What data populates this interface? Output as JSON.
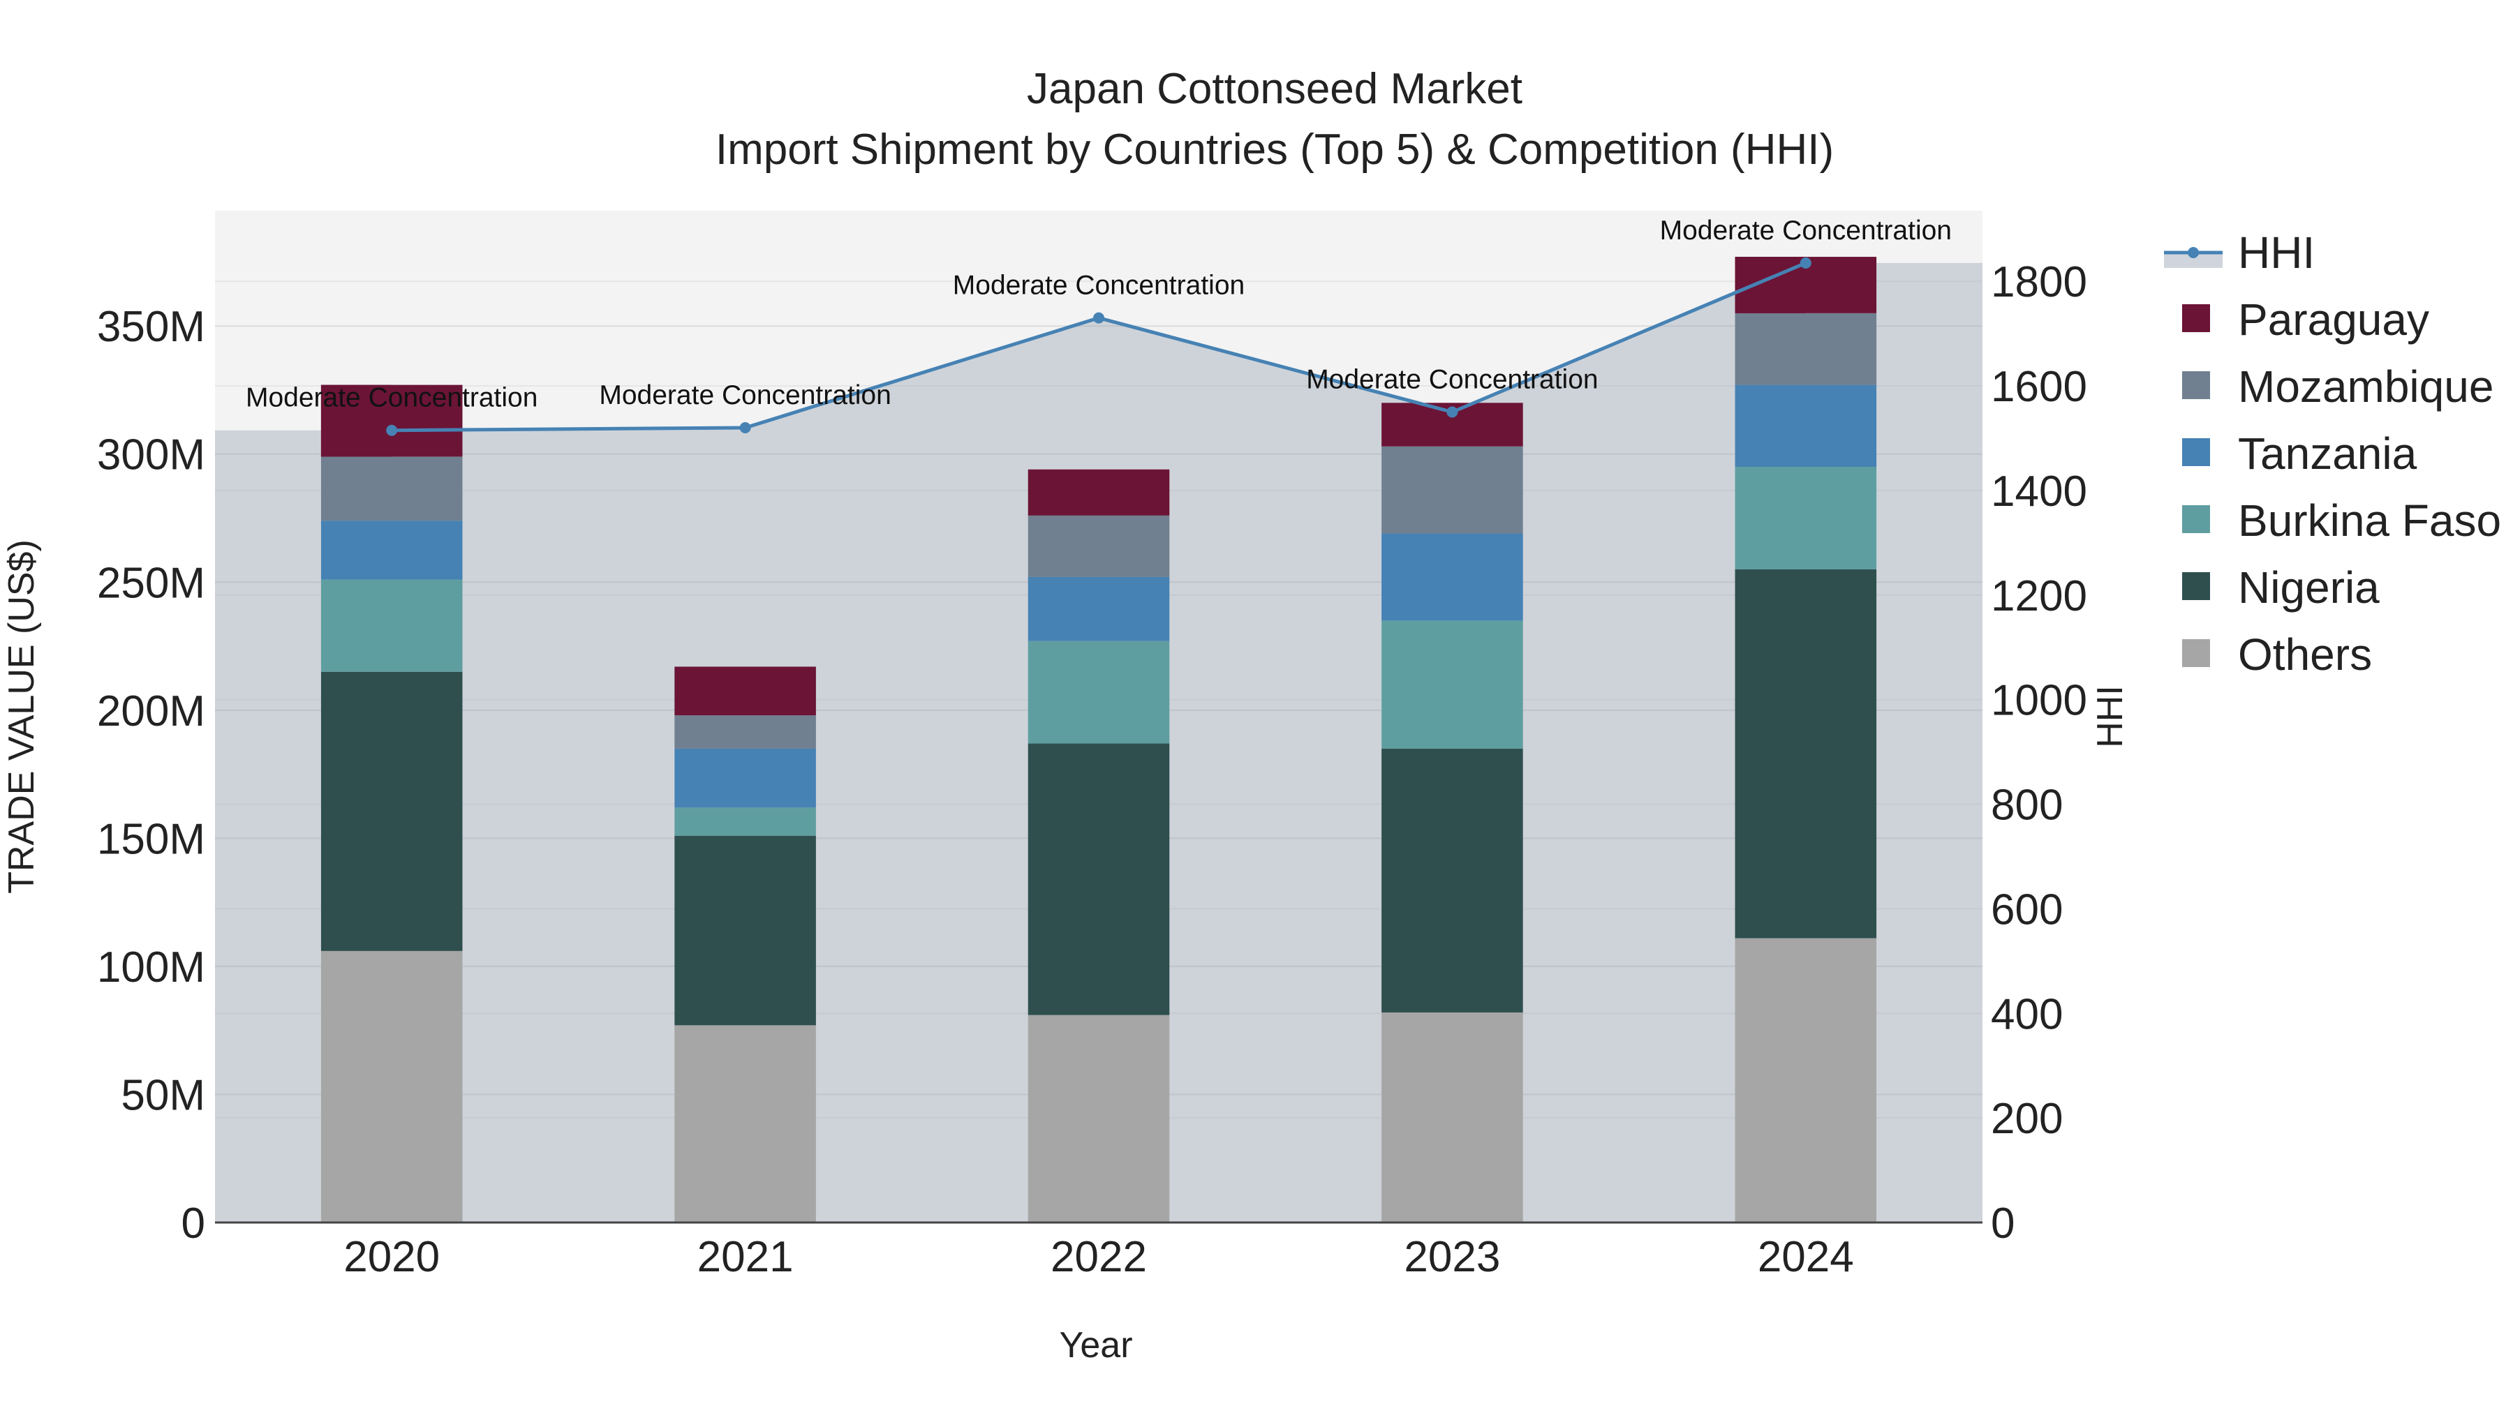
{
  "chart_data": {
    "type": "bar",
    "title_line1": "Japan Cottonseed Market",
    "title_line2": "Import Shipment by Countries (Top 5) & Competition (HHI)",
    "xlabel": "Year",
    "ylabel": "TRADE VALUE (US$)",
    "y2label": "HHI",
    "categories": [
      "2020",
      "2021",
      "2022",
      "2023",
      "2024"
    ],
    "ylim": [
      0,
      395
    ],
    "y_unit": "M",
    "y_ticks": [
      0,
      50,
      100,
      150,
      200,
      250,
      300,
      350
    ],
    "y_tick_labels": [
      "0",
      "50M",
      "100M",
      "150M",
      "200M",
      "250M",
      "300M",
      "350M"
    ],
    "y2lim": [
      0,
      1935
    ],
    "y2_ticks": [
      0,
      200,
      400,
      600,
      800,
      1000,
      1200,
      1400,
      1600,
      1800
    ],
    "y2_tick_labels": [
      "0",
      "200",
      "400",
      "600",
      "800",
      "1000",
      "1200",
      "1400",
      "1600",
      "1800"
    ],
    "series": [
      {
        "name": "Others",
        "color": "#a6a6a6",
        "values": [
          106,
          77,
          81,
          82,
          111
        ]
      },
      {
        "name": "Nigeria",
        "color": "#2f4f4f",
        "values": [
          109,
          74,
          106,
          103,
          144
        ]
      },
      {
        "name": "Burkina Faso",
        "color": "#5f9ea0",
        "values": [
          36,
          11,
          40,
          50,
          40
        ]
      },
      {
        "name": "Tanzania",
        "color": "#4682b4",
        "values": [
          23,
          23,
          25,
          34,
          32
        ]
      },
      {
        "name": "Mozambique",
        "color": "#708090",
        "values": [
          25,
          13,
          24,
          34,
          28
        ]
      },
      {
        "name": "Paraguay",
        "color": "#6b1436",
        "values": [
          28,
          19,
          18,
          17,
          22
        ]
      }
    ],
    "hhi": {
      "name": "HHI",
      "color": "#4682b4",
      "values": [
        1515,
        1520,
        1730,
        1550,
        1835
      ],
      "annotations": [
        "Moderate Concentration",
        "Moderate Concentration",
        "Moderate Concentration",
        "Moderate Concentration",
        "Moderate Concentration"
      ]
    },
    "legend_order": [
      "HHI",
      "Paraguay",
      "Mozambique",
      "Tanzania",
      "Burkina Faso",
      "Nigeria",
      "Others"
    ],
    "legend_position": "right",
    "grid": true
  }
}
